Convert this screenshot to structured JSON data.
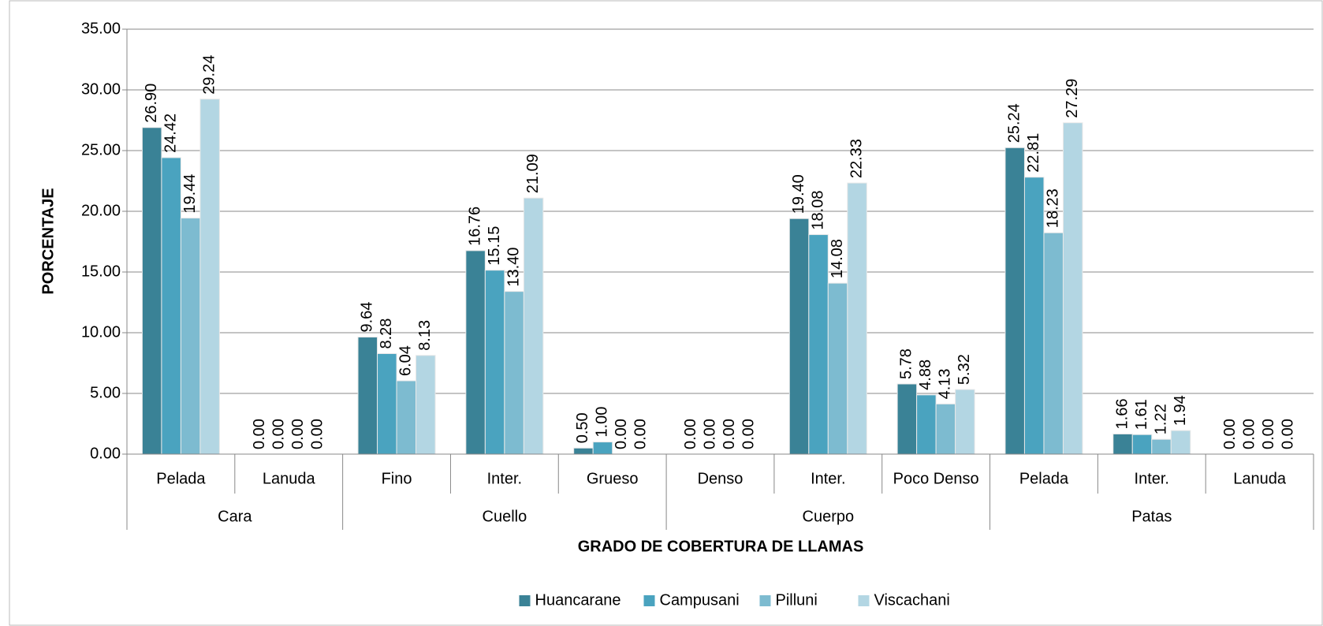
{
  "chart_data": {
    "type": "bar",
    "x_label": "GRADO DE COBERTURA DE LLAMAS",
    "y_label": "PORCENTAJE",
    "groups": [
      {
        "name": "Cara",
        "categories": [
          "Pelada",
          "Lanuda"
        ]
      },
      {
        "name": "Cuello",
        "categories": [
          "Fino",
          "Inter.",
          "Grueso"
        ]
      },
      {
        "name": "Cuerpo",
        "categories": [
          "Denso",
          "Inter.",
          "Poco Denso"
        ]
      },
      {
        "name": "Patas",
        "categories": [
          "Pelada",
          "Inter.",
          "Lanuda"
        ]
      }
    ],
    "series": [
      {
        "name": "Huancarane",
        "color": "#3a8296",
        "values": [
          26.9,
          0,
          9.64,
          16.76,
          0.5,
          0,
          19.4,
          5.78,
          25.24,
          1.66,
          0
        ],
        "value_labels": [
          "26.90",
          "0.00",
          "9.64",
          "16.76",
          "0.50",
          "0.00",
          "19.40",
          "5.78",
          "25.24",
          "1.66",
          "0.00"
        ]
      },
      {
        "name": "Campusani",
        "color": "#4aa3bf",
        "values": [
          24.42,
          0,
          8.28,
          15.15,
          1,
          0,
          18.08,
          4.88,
          22.81,
          1.61,
          0
        ],
        "value_labels": [
          "24.42",
          "0.00",
          "8.28",
          "15.15",
          "1.00",
          "0.00",
          "18.08",
          "4.88",
          "22.81",
          "1.61",
          "0.00"
        ]
      },
      {
        "name": "Pilluni",
        "color": "#7dbbd0",
        "values": [
          19.44,
          0,
          6.04,
          13.4,
          0,
          0,
          14.08,
          4.13,
          18.23,
          1.22,
          0
        ],
        "value_labels": [
          "19.44",
          "0.00",
          "6.04",
          "13.40",
          "0.00",
          "0.00",
          "14.08",
          "4.13",
          "18.23",
          "1.22",
          "0.00"
        ]
      },
      {
        "name": "Viscachani",
        "color": "#b3d6e3",
        "values": [
          29.24,
          0,
          8.13,
          21.09,
          0,
          0,
          22.33,
          5.32,
          27.29,
          1.94,
          0
        ],
        "value_labels": [
          "29.24",
          "0.00",
          "8.13",
          "21.09",
          "0.00",
          "0.00",
          "22.33",
          "5.32",
          "27.29",
          "1.94",
          "0.00"
        ]
      }
    ],
    "ylim": [
      0,
      35
    ],
    "yticks": [
      {
        "value": 0,
        "label": "0.00"
      },
      {
        "value": 5,
        "label": "5.00"
      },
      {
        "value": 10,
        "label": "10.00"
      },
      {
        "value": 15,
        "label": "15.00"
      },
      {
        "value": 20,
        "label": "20.00"
      },
      {
        "value": 25,
        "label": "25.00"
      },
      {
        "value": 30,
        "label": "30.00"
      },
      {
        "value": 35,
        "label": "35.00"
      }
    ],
    "grid": true,
    "legend": "bottom"
  }
}
